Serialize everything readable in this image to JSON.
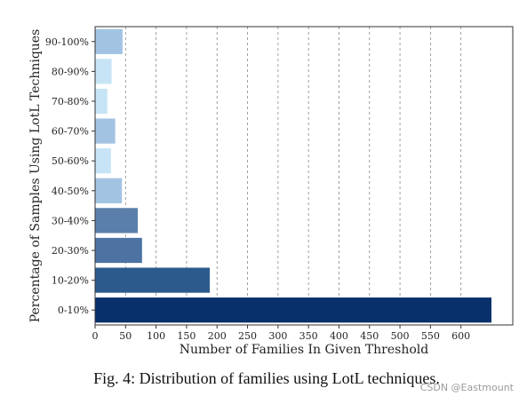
{
  "chart_data": {
    "type": "bar",
    "orientation": "horizontal",
    "categories": [
      "0-10%",
      "10-20%",
      "20-30%",
      "30-40%",
      "40-50%",
      "50-60%",
      "60-70%",
      "70-80%",
      "80-90%",
      "90-100%"
    ],
    "values": [
      650,
      188,
      77,
      70,
      44,
      26,
      33,
      20,
      27,
      45
    ],
    "colors": [
      "#08306b",
      "#2c5a8c",
      "#4c73a2",
      "#5a7fab",
      "#a3c3e3",
      "#c6e4f5",
      "#a3c3e3",
      "#c6e4f5",
      "#c6e4f5",
      "#a3c3e3"
    ],
    "xlabel": "Number of Families In Given Threshold",
    "ylabel": "Percentage of Samples Using LotL Techniques",
    "xlim": [
      0,
      685
    ],
    "xticks": [
      0,
      50,
      100,
      150,
      200,
      250,
      300,
      350,
      400,
      450,
      500,
      550,
      600
    ],
    "grid": "vertical-dashed"
  },
  "caption": "Fig. 4: Distribution of families using LotL techniques.",
  "watermark": "CSDN @Eastmount"
}
